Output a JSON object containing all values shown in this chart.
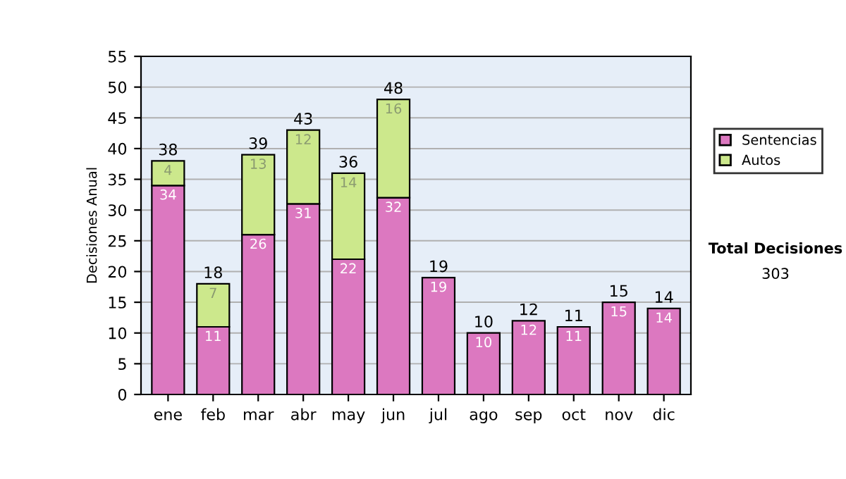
{
  "chart_data": {
    "type": "bar",
    "stacked": true,
    "ylabel": "Decisiones Anual",
    "categories": [
      "ene",
      "feb",
      "mar",
      "abr",
      "may",
      "jun",
      "jul",
      "ago",
      "sep",
      "oct",
      "nov",
      "dic"
    ],
    "series": [
      {
        "name": "Sentencias",
        "color": "#dc78c0",
        "values": [
          34,
          11,
          26,
          31,
          22,
          32,
          19,
          10,
          12,
          11,
          15,
          14
        ],
        "value_labels": [
          "34",
          "11",
          "26",
          "31",
          "22",
          "32",
          "19",
          "10",
          "12",
          "11",
          "15",
          "14"
        ]
      },
      {
        "name": "Autos",
        "color": "#cce88c",
        "values": [
          4,
          7,
          13,
          12,
          14,
          16,
          null,
          null,
          null,
          null,
          null,
          null
        ],
        "value_labels": [
          "4",
          "7",
          "13",
          "12",
          "14",
          "16",
          null,
          null,
          null,
          null,
          null,
          null
        ]
      }
    ],
    "totals": [
      "38",
      "18",
      "39",
      "43",
      "36",
      "48",
      "19",
      "10",
      "12",
      "11",
      "15",
      "14"
    ],
    "ylim": [
      0,
      55
    ],
    "yticks": [
      0,
      5,
      10,
      15,
      20,
      25,
      30,
      35,
      40,
      45,
      50,
      55
    ],
    "grid": "y",
    "legend": "right",
    "annotations": [
      "Total Decisiones",
      "303"
    ]
  }
}
